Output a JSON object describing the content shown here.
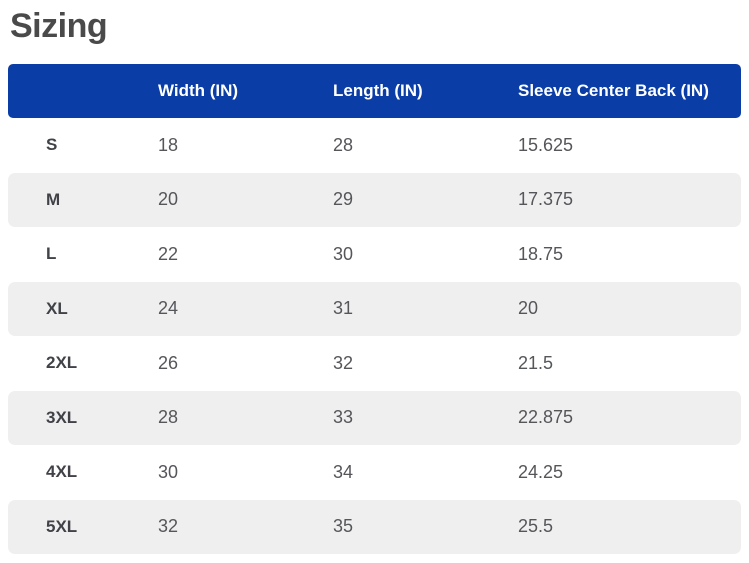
{
  "title": "Sizing",
  "colors": {
    "header_bg": "#0a3da6",
    "header_text": "#ffffff",
    "stripe_bg": "#f0eff0",
    "title_text": "#4a4a4a",
    "body_text": "#55565a",
    "size_text": "#404247"
  },
  "table": {
    "columns": [
      "",
      "Width (IN)",
      "Length (IN)",
      "Sleeve Center Back (IN)"
    ],
    "rows": [
      {
        "size": "S",
        "width": "18",
        "length": "28",
        "sleeve": "15.625"
      },
      {
        "size": "M",
        "width": "20",
        "length": "29",
        "sleeve": "17.375"
      },
      {
        "size": "L",
        "width": "22",
        "length": "30",
        "sleeve": "18.75"
      },
      {
        "size": "XL",
        "width": "24",
        "length": "31",
        "sleeve": "20"
      },
      {
        "size": "2XL",
        "width": "26",
        "length": "32",
        "sleeve": "21.5"
      },
      {
        "size": "3XL",
        "width": "28",
        "length": "33",
        "sleeve": "22.875"
      },
      {
        "size": "4XL",
        "width": "30",
        "length": "34",
        "sleeve": "24.25"
      },
      {
        "size": "5XL",
        "width": "32",
        "length": "35",
        "sleeve": "25.5"
      }
    ]
  }
}
